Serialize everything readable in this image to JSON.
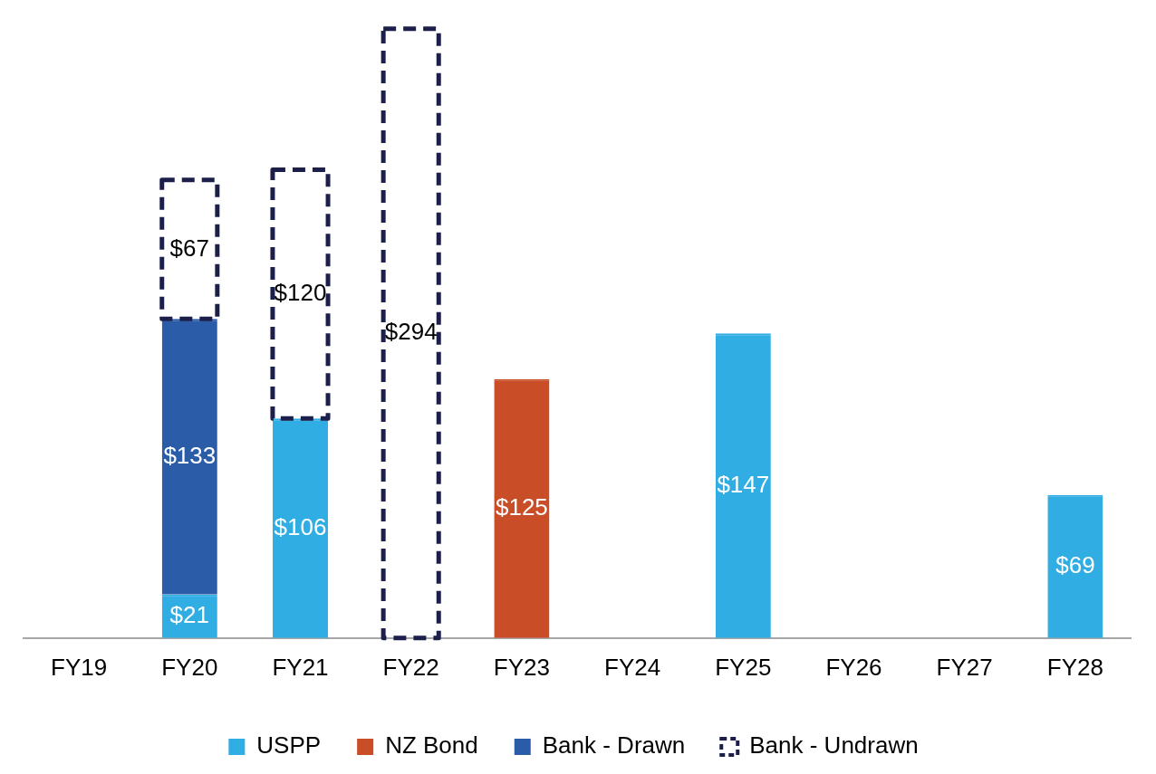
{
  "chart_data": {
    "type": "bar",
    "stacked": true,
    "categories": [
      "FY19",
      "FY20",
      "FY21",
      "FY22",
      "FY23",
      "FY24",
      "FY25",
      "FY26",
      "FY27",
      "FY28"
    ],
    "series": [
      {
        "name": "USPP",
        "color": "#30ade3",
        "values": [
          null,
          21,
          106,
          null,
          null,
          null,
          147,
          null,
          null,
          69
        ],
        "value_labels": [
          null,
          "$21",
          "$106",
          null,
          null,
          null,
          "$147",
          null,
          null,
          "$69"
        ]
      },
      {
        "name": "NZ Bond",
        "color": "#c94e28",
        "values": [
          null,
          null,
          null,
          null,
          125,
          null,
          null,
          null,
          null,
          null
        ],
        "value_labels": [
          null,
          null,
          null,
          null,
          "$125",
          null,
          null,
          null,
          null,
          null
        ]
      },
      {
        "name": "Bank - Drawn",
        "color": "#2b5ca8",
        "values": [
          null,
          133,
          null,
          null,
          null,
          null,
          null,
          null,
          null,
          null
        ],
        "value_labels": [
          null,
          "$133",
          null,
          null,
          null,
          null,
          null,
          null,
          null,
          null
        ]
      },
      {
        "name": "Bank - Undrawn",
        "color": "#1c1f4a",
        "line_style": "dashed",
        "values": [
          null,
          67,
          120,
          294,
          null,
          null,
          null,
          null,
          null,
          null
        ],
        "value_labels": [
          null,
          "$67",
          "$120",
          "$294",
          null,
          null,
          null,
          null,
          null,
          null
        ]
      }
    ],
    "tick_labels": "x",
    "grid": false,
    "legend": "bottom"
  }
}
